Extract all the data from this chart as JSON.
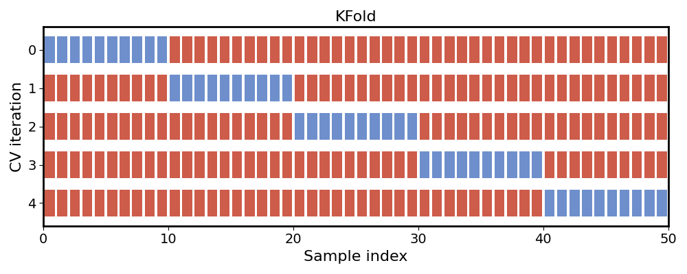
{
  "title": "KFold",
  "xlabel": "Sample index",
  "ylabel": "CV iteration",
  "n_splits": 5,
  "n_samples": 50,
  "train_color": "#cd5c4a",
  "test_color": "#6e8fcc",
  "figsize": [
    10.0,
    4.0
  ],
  "dpi": 100,
  "yticks": [
    0,
    1,
    2,
    3,
    4
  ],
  "xticks": [
    0,
    10,
    20,
    30,
    40,
    50
  ],
  "xlim": [
    0,
    50
  ],
  "ylim": [
    4.6,
    -0.6
  ],
  "bar_width": 0.8,
  "bar_height": 0.7,
  "background_color": "#ffffff",
  "spine_color": "#000000",
  "spine_linewidth": 2.0,
  "title_fontsize": 16,
  "label_fontsize": 16,
  "tick_fontsize": 14
}
